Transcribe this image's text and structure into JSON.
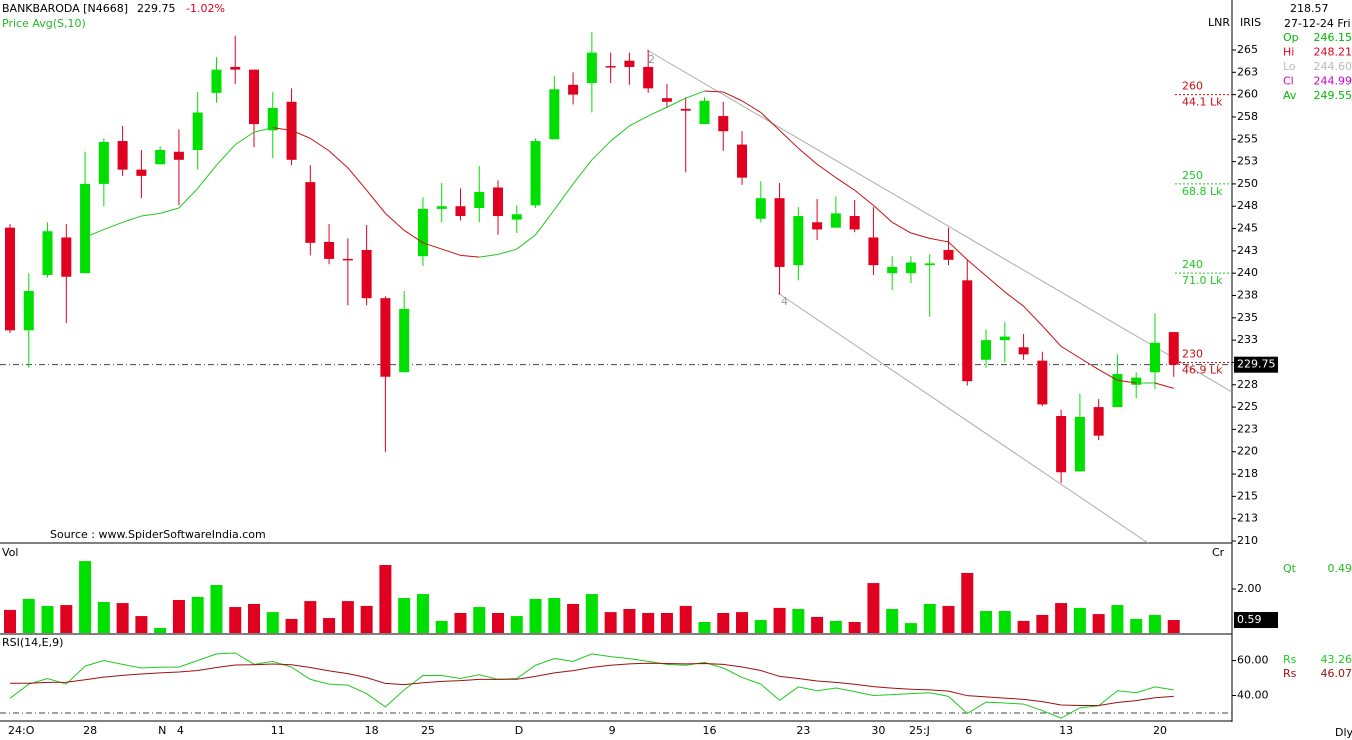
{
  "header": {
    "symbol": "BANKBARODA [N4668]",
    "change": "-1.02%",
    "lnr": "LNR",
    "iris": "IRIS",
    "dly": "Dly"
  },
  "info": {
    "price": "218.57",
    "date": "27-12-24 Fri",
    "rows": [
      {
        "name": "Op",
        "value": "246.15",
        "color": "#00b800"
      },
      {
        "name": "Hi",
        "value": "248.21",
        "color": "#e00020"
      },
      {
        "name": "Lo",
        "value": "244.60",
        "color": "#bbbbbb"
      },
      {
        "name": "Cl",
        "value": "244.99",
        "color": "#cc00cc"
      },
      {
        "name": "Av",
        "value": "249.55",
        "color": "#00b800"
      }
    ]
  },
  "chart_data": [
    {
      "type": "candlestick",
      "source": "Source : www.SpiderSoftwareIndia.com",
      "categories": [
        "24:O",
        null,
        null,
        null,
        "28",
        null,
        null,
        null,
        "N",
        "4",
        null,
        null,
        null,
        null,
        "11",
        null,
        null,
        null,
        null,
        "18",
        null,
        null,
        "25",
        null,
        null,
        null,
        null,
        "D",
        null,
        null,
        null,
        null,
        "9",
        null,
        null,
        null,
        null,
        "16",
        null,
        null,
        null,
        null,
        "23",
        null,
        null,
        null,
        "30",
        null,
        "25:J",
        null,
        null,
        "6",
        null,
        null,
        null,
        null,
        "13",
        null,
        null,
        null,
        null,
        "20",
        null
      ],
      "open": [
        245.1,
        233.6,
        239.8,
        244.0,
        240.0,
        250.0,
        254.8,
        251.6,
        252.2,
        253.6,
        253.8,
        260.2,
        263.1,
        262.8,
        256.0,
        259.2,
        250.2,
        243.5,
        241.6,
        242.6,
        237.2,
        228.9,
        241.9,
        247.2,
        247.5,
        247.3,
        249.6,
        246.0,
        247.6,
        255.0,
        261.1,
        261.3,
        263.2,
        263.8,
        263.1,
        259.6,
        258.4,
        256.7,
        257.6,
        254.4,
        246.1,
        248.4,
        240.9,
        245.7,
        245.1,
        246.4,
        244.0,
        240.0,
        240.0,
        240.9,
        242.6,
        239.2,
        230.3,
        232.5,
        231.7,
        230.2,
        224.0,
        217.8,
        225.0,
        225.0,
        227.5,
        228.9,
        233.4
      ],
      "high": [
        245.5,
        240.0,
        245.7,
        245.5,
        253.6,
        255.1,
        256.5,
        253.8,
        254.2,
        256.1,
        260.3,
        264.2,
        266.6,
        262.8,
        260.3,
        260.7,
        252.1,
        245.5,
        243.9,
        245.4,
        237.4,
        238.0,
        248.5,
        250.1,
        249.5,
        252.0,
        250.4,
        247.6,
        255.1,
        262.1,
        262.5,
        267.0,
        264.7,
        264.7,
        265.0,
        261.2,
        259.7,
        259.7,
        259.2,
        255.9,
        250.3,
        250.1,
        247.4,
        248.3,
        248.6,
        248.2,
        247.4,
        241.9,
        241.9,
        242.1,
        245.1,
        241.5,
        233.7,
        234.5,
        233.2,
        231.2,
        224.7,
        226.5,
        225.9,
        230.9,
        228.9,
        235.5,
        233.4
      ],
      "low": [
        233.3,
        229.4,
        239.5,
        234.4,
        240.0,
        247.5,
        250.9,
        248.4,
        252.2,
        247.6,
        251.6,
        259.1,
        261.2,
        254.1,
        252.9,
        252.1,
        242.0,
        241.0,
        236.4,
        236.4,
        220.0,
        228.9,
        240.8,
        245.7,
        245.9,
        245.7,
        244.3,
        244.5,
        247.3,
        255.0,
        258.9,
        258.0,
        261.3,
        261.1,
        260.2,
        258.5,
        251.3,
        256.7,
        253.7,
        249.9,
        245.7,
        237.6,
        239.2,
        243.7,
        245.1,
        244.6,
        239.8,
        238.1,
        238.9,
        235.1,
        240.9,
        227.4,
        229.4,
        230.0,
        230.3,
        225.1,
        216.5,
        217.8,
        221.3,
        225.0,
        226.0,
        227.0,
        228.4
      ],
      "close": [
        233.6,
        238.0,
        244.7,
        239.6,
        250.0,
        254.7,
        251.6,
        250.9,
        253.8,
        252.7,
        258.0,
        262.8,
        262.8,
        256.7,
        258.5,
        252.7,
        243.4,
        241.6,
        241.5,
        237.2,
        228.4,
        236.0,
        247.2,
        247.5,
        246.4,
        249.1,
        246.4,
        246.6,
        254.8,
        260.6,
        260.0,
        264.7,
        263.1,
        263.1,
        260.7,
        259.2,
        258.2,
        259.3,
        255.9,
        250.7,
        248.4,
        240.7,
        246.4,
        244.9,
        246.7,
        244.9,
        240.9,
        240.7,
        241.2,
        241.1,
        241.5,
        227.9,
        232.5,
        232.9,
        230.9,
        225.3,
        217.7,
        223.9,
        221.8,
        228.7,
        228.3,
        232.2,
        229.75
      ],
      "up_color": "#00e000",
      "down_color": "#e00020",
      "overlay": {
        "name": "Price Avg(S,10)",
        "up_color": "#22c922",
        "down_color": "#c81010",
        "values": [
          null,
          null,
          null,
          null,
          244.0,
          244.9,
          245.7,
          246.4,
          246.7,
          247.3,
          249.5,
          252.1,
          254.4,
          255.8,
          256.3,
          256.0,
          255.1,
          253.7,
          251.8,
          249.3,
          246.7,
          244.8,
          243.4,
          242.7,
          242.0,
          241.8,
          242.1,
          242.7,
          244.3,
          247.1,
          250.0,
          252.7,
          254.8,
          256.5,
          257.6,
          258.6,
          259.6,
          260.4,
          260.3,
          259.3,
          258.0,
          256.0,
          254.0,
          252.2,
          250.7,
          249.3,
          247.6,
          245.7,
          244.5,
          243.9,
          243.5,
          241.5,
          239.7,
          237.9,
          236.3,
          234.1,
          231.8,
          230.5,
          229.2,
          228.0,
          227.7,
          227.7,
          227.1
        ]
      },
      "ylim": [
        210,
        270.6
      ],
      "yticks": [
        {
          "value": 265,
          "label": "265"
        },
        {
          "value": 262.5,
          "label": "263"
        },
        {
          "value": 260,
          "label": "260"
        },
        {
          "value": 257.5,
          "label": "258"
        },
        {
          "value": 255,
          "label": "255"
        },
        {
          "value": 252.5,
          "label": "253"
        },
        {
          "value": 250,
          "label": "250"
        },
        {
          "value": 247.5,
          "label": "248"
        },
        {
          "value": 245,
          "label": "245"
        },
        {
          "value": 242.5,
          "label": "243"
        },
        {
          "value": 240,
          "label": "240"
        },
        {
          "value": 237.5,
          "label": "238"
        },
        {
          "value": 235,
          "label": "235"
        },
        {
          "value": 232.5,
          "label": "233"
        },
        {
          "value": 230,
          "label": "230"
        },
        {
          "value": 227.5,
          "label": "228"
        },
        {
          "value": 225,
          "label": "225"
        },
        {
          "value": 222.5,
          "label": "223"
        },
        {
          "value": 220,
          "label": "220"
        },
        {
          "value": 217.5,
          "label": "218"
        },
        {
          "value": 215,
          "label": "215"
        },
        {
          "value": 212.5,
          "label": "213"
        },
        {
          "value": 210,
          "label": "210"
        }
      ],
      "levels": [
        {
          "price": 260,
          "label": "44.1 Lk",
          "color": "#c81010"
        },
        {
          "price": 250,
          "label": "68.8 Lk",
          "color": "#22c922"
        },
        {
          "price": 240,
          "label": "71.0 Lk",
          "color": "#22c922"
        },
        {
          "price": 230,
          "label": "46.9 Lk",
          "color": "#c81010"
        }
      ],
      "annotations": [
        "2",
        "4"
      ]
    },
    {
      "type": "bar",
      "title": "Vol",
      "unit": "Cr",
      "values": [
        1.05,
        1.55,
        1.23,
        1.27,
        3.27,
        1.41,
        1.36,
        0.77,
        0.23,
        1.5,
        1.64,
        2.18,
        1.18,
        1.32,
        0.95,
        0.64,
        1.45,
        0.68,
        1.45,
        1.23,
        3.09,
        1.59,
        1.77,
        0.55,
        0.91,
        1.18,
        0.91,
        0.77,
        1.55,
        1.59,
        1.32,
        1.77,
        0.95,
        1.09,
        0.91,
        0.91,
        1.23,
        0.5,
        0.91,
        0.95,
        0.59,
        1.14,
        1.09,
        0.73,
        0.55,
        0.5,
        2.27,
        1.09,
        0.45,
        1.32,
        1.23,
        2.73,
        1.0,
        1.0,
        0.55,
        0.82,
        1.36,
        1.14,
        0.86,
        1.27,
        0.64,
        0.82,
        0.59
      ],
      "ylim": [
        0,
        4
      ],
      "yticks": [
        {
          "value": 2,
          "label": "2.00"
        }
      ],
      "readout": {
        "name": "Qt",
        "value": "0.49"
      }
    },
    {
      "type": "line",
      "title": "RSI(14,E,9)",
      "series": [
        {
          "name": "Rs",
          "color": "#22c922",
          "readout": "43.26",
          "values": [
            38.4,
            46.5,
            49.7,
            46.5,
            56.8,
            60,
            57.8,
            55.7,
            56.2,
            56.2,
            60,
            63.8,
            64.3,
            57.8,
            59.5,
            56.2,
            49.2,
            46.5,
            45.9,
            41.1,
            33.5,
            43.2,
            51.4,
            51.4,
            49.7,
            51.9,
            49.2,
            49.7,
            57.3,
            61.1,
            59.5,
            63.8,
            62.2,
            61.1,
            59.5,
            57.8,
            57.3,
            58.9,
            55.7,
            50.3,
            46.5,
            37.3,
            44.9,
            42.7,
            44.3,
            42.2,
            40,
            40.5,
            41.1,
            41.6,
            39.5,
            29.7,
            36.2,
            35.7,
            35.1,
            31.4,
            27,
            33,
            34.1,
            42.7,
            41.6,
            44.9,
            43.2
          ]
        },
        {
          "name": "Rs",
          "color": "#a01010",
          "readout": "46.07",
          "values": [
            47.0,
            47.0,
            47.5,
            47.6,
            49.0,
            50.5,
            51.5,
            52.3,
            52.9,
            53.4,
            54.3,
            56.0,
            57.4,
            57.6,
            58.0,
            57.6,
            56.0,
            54.1,
            52.5,
            50.2,
            46.9,
            46.2,
            47.3,
            48.1,
            48.5,
            49.2,
            49.2,
            49.3,
            50.9,
            52.9,
            54.2,
            56.1,
            57.3,
            58.1,
            58.4,
            58.3,
            58.1,
            58.3,
            57.8,
            56.3,
            54.3,
            50.9,
            49.7,
            48.3,
            47.5,
            46.4,
            45.1,
            44.2,
            43.6,
            43.2,
            42.5,
            39.9,
            39.2,
            38.5,
            37.8,
            36.5,
            34.6,
            34.3,
            34.3,
            36.0,
            37.1,
            38.7,
            39.5
          ]
        }
      ],
      "ylim": [
        26,
        74
      ],
      "yticks": [
        {
          "value": 60,
          "label": "60.00"
        },
        {
          "value": 40,
          "label": "40.00"
        }
      ],
      "hline": 30
    }
  ]
}
